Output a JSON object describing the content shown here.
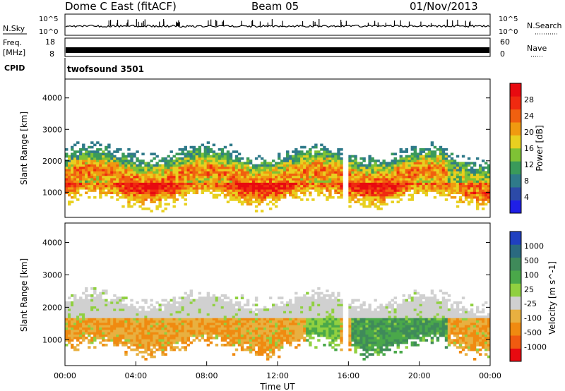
{
  "header": {
    "site": "Dome C East (fitACF)",
    "beam": "Beam 05",
    "date": "01/Nov/2013"
  },
  "status_panels": {
    "nsky": {
      "label": "N.Sky",
      "ticks": [
        "10^5",
        "10^0"
      ],
      "right_label": "N.Search",
      "right_ticks": [
        "10^5",
        "10^0"
      ]
    },
    "freq": {
      "label_top": "Freq.",
      "label_unit": "[MHz]",
      "ticks": [
        "18",
        "8"
      ],
      "right_label": "Nave",
      "right_ticks": [
        "60",
        "0"
      ]
    },
    "cpid": {
      "label": "CPID",
      "value": "twofsound 3501"
    }
  },
  "chart_data": [
    {
      "type": "heatmap",
      "name": "power",
      "ylabel": "Slant Range [km]",
      "ylim": [
        200,
        4600
      ],
      "xlim": [
        0,
        24
      ],
      "y_ticks": [
        "1000",
        "2000",
        "3000",
        "4000"
      ],
      "colorbar": {
        "label": "Power [dB]",
        "ticks": [
          "4",
          "8",
          "12",
          "16",
          "20",
          "24",
          "28"
        ],
        "colors": [
          "#1f1fe6",
          "#2c4aa8",
          "#2f7a8a",
          "#3a9a5a",
          "#7fc235",
          "#e8d020",
          "#f09a10",
          "#f06010",
          "#f02a10",
          "#e80a10"
        ]
      }
    },
    {
      "type": "heatmap",
      "name": "velocity",
      "ylabel": "Slant Range [km]",
      "ylim": [
        200,
        4600
      ],
      "xlim": [
        0,
        24
      ],
      "xlabel": "Time UT",
      "x_ticks": [
        "00:00",
        "04:00",
        "08:00",
        "12:00",
        "16:00",
        "20:00",
        "00:00"
      ],
      "y_ticks": [
        "1000",
        "2000",
        "3000",
        "4000"
      ],
      "colorbar": {
        "label": "Velocity [m s^-1]",
        "ticks": [
          "1000",
          "500",
          "100",
          "25",
          "-25",
          "-100",
          "-500",
          "-1000"
        ],
        "colors": [
          "#2040c0",
          "#2a6a80",
          "#3f8a5a",
          "#4aa84a",
          "#90d040",
          "#d0d0d0",
          "#e8b040",
          "#f08a10",
          "#f05a10",
          "#e80a10"
        ]
      }
    }
  ]
}
